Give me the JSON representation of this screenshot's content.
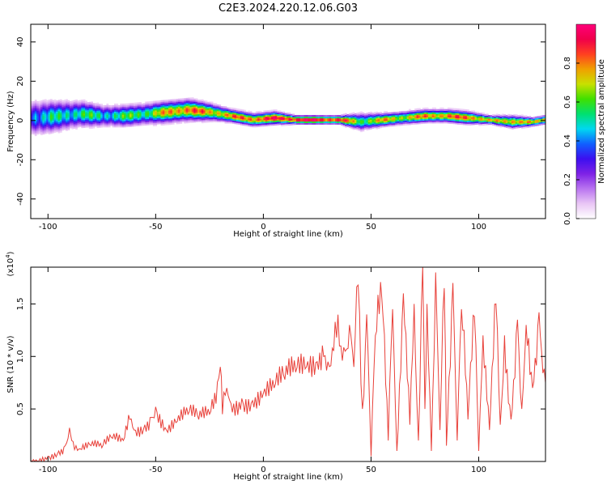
{
  "title": "C2E3.2024.220.12.06.G03",
  "colors": {
    "snr_line": "#e8413a",
    "axis": "#000000",
    "colormap": [
      "#ffffff",
      "#e9c6f5",
      "#b974f0",
      "#7e22e6",
      "#3c0ff0",
      "#1060ff",
      "#00d8f0",
      "#00e070",
      "#40e000",
      "#c8e000",
      "#f0a000",
      "#ff4020",
      "#f0004a",
      "#ff007a"
    ]
  },
  "chart_data": [
    {
      "type": "heatmap",
      "panel": "spectrogram",
      "xlabel": "Height of straight line (km)",
      "ylabel": "Frequency (Hz)",
      "xlim": [
        -108,
        131
      ],
      "ylim": [
        -50,
        49
      ],
      "x_ticks": [
        -100,
        -50,
        0,
        50,
        100
      ],
      "y_ticks": [
        -40,
        -20,
        0,
        20,
        40
      ],
      "colorbar": {
        "label": "Normalized spectral amplitude",
        "range": [
          0.0,
          1.0
        ],
        "ticks": [
          0.0,
          0.2,
          0.4,
          0.6,
          0.8
        ]
      },
      "ridge": {
        "x": [
          -105,
          -95,
          -85,
          -75,
          -65,
          -55,
          -45,
          -35,
          -25,
          -15,
          -5,
          5,
          15,
          25,
          35,
          45,
          55,
          65,
          75,
          85,
          95,
          105,
          115,
          125,
          130
        ],
        "frequency": [
          1,
          2,
          3,
          2,
          2,
          3,
          4,
          5,
          4,
          2,
          0,
          1,
          0,
          0,
          0,
          -1,
          0,
          1,
          2,
          2,
          1,
          0,
          -1,
          -1,
          0
        ],
        "amplitude": [
          0.45,
          0.5,
          0.55,
          0.5,
          0.55,
          0.6,
          0.75,
          0.85,
          0.75,
          0.8,
          0.85,
          0.9,
          0.95,
          0.95,
          0.9,
          0.6,
          0.75,
          0.7,
          0.8,
          0.8,
          0.85,
          0.7,
          0.8,
          0.7,
          0.8
        ],
        "spread": [
          8,
          7,
          6,
          5,
          5,
          5,
          5,
          5,
          4,
          3,
          3,
          3,
          2,
          2,
          2,
          4,
          3,
          3,
          3,
          3,
          3,
          2,
          3,
          2,
          2
        ]
      }
    },
    {
      "type": "line",
      "panel": "snr",
      "xlabel": "Height of straight line (km)",
      "ylabel": "SNR (10 * v/v)",
      "y_scale_label_base": "(x10",
      "y_scale_label_exp": "4",
      "y_scale_label_close": ")",
      "xlim": [
        -108,
        131
      ],
      "ylim": [
        0,
        1.85
      ],
      "x_ticks": [
        -100,
        -50,
        0,
        50,
        100
      ],
      "y_ticks": [
        0.5,
        1.0,
        1.5
      ],
      "y_tick_labels": [
        "0.5",
        "1.0",
        "1.5"
      ],
      "series": [
        {
          "x": [
            -108,
            -100,
            -95,
            -92,
            -90,
            -89,
            -87,
            -85,
            -80,
            -75,
            -70,
            -65,
            -62,
            -60,
            -55,
            -52,
            -50,
            -45,
            -40,
            -35,
            -30,
            -25,
            -22,
            -20,
            -19,
            -17,
            -15,
            -10,
            -5,
            0,
            5,
            10,
            15,
            20,
            25,
            28,
            30,
            32,
            34,
            36,
            38,
            40,
            42,
            44,
            46,
            48,
            50,
            52,
            55,
            58,
            60,
            62,
            65,
            68,
            70,
            72,
            74,
            75,
            76,
            78,
            80,
            82,
            84,
            85,
            88,
            90,
            92,
            95,
            98,
            100,
            102,
            105,
            108,
            110,
            112,
            115,
            118,
            120,
            122,
            125,
            128,
            131
          ],
          "y": [
            0.01,
            0.05,
            0.1,
            0.15,
            0.32,
            0.2,
            0.15,
            0.12,
            0.15,
            0.13,
            0.22,
            0.2,
            0.4,
            0.3,
            0.35,
            0.42,
            0.52,
            0.3,
            0.38,
            0.45,
            0.4,
            0.45,
            0.55,
            0.9,
            0.45,
            0.7,
            0.55,
            0.6,
            0.58,
            0.65,
            0.7,
            0.78,
            0.85,
            0.9,
            0.95,
            1.0,
            0.95,
            1.08,
            1.18,
            1.1,
            1.05,
            1.3,
            0.9,
            1.68,
            0.5,
            1.4,
            0.05,
            1.2,
            1.55,
            0.2,
            1.45,
            0.1,
            1.6,
            0.35,
            1.5,
            0.2,
            1.85,
            0.5,
            1.5,
            0.1,
            1.8,
            0.3,
            1.65,
            0.15,
            1.7,
            0.2,
            1.45,
            0.4,
            1.38,
            0.1,
            1.2,
            0.3,
            1.5,
            0.35,
            1.2,
            0.4,
            1.35,
            0.5,
            1.3,
            0.7,
            1.42,
            0.75
          ]
        }
      ]
    }
  ]
}
